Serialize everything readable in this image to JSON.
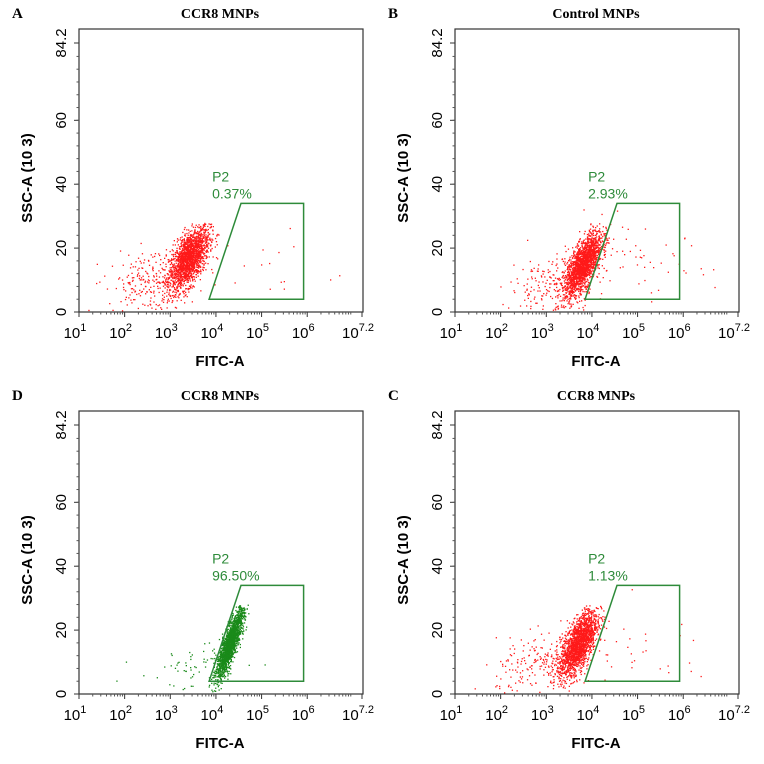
{
  "chart_data": [
    {
      "panel": "A",
      "title": "CCR8 MNPs",
      "type": "scatter",
      "xlabel": "FITC-A",
      "ylabel": "SSC-A",
      "ylabel_unit": "(10 3)",
      "xscale": "log",
      "xlim_exp": [
        1,
        7.2
      ],
      "xticks_exp": [
        "1",
        "2",
        "3",
        "4",
        "5",
        "6",
        "7.2"
      ],
      "ylim": [
        0,
        84.2
      ],
      "yticks": [
        "0",
        "20",
        "40",
        "60",
        "84.2"
      ],
      "gate": {
        "name": "P2",
        "percent": "0.37%",
        "polygon_logx_y": [
          [
            3.85,
            4
          ],
          [
            4.55,
            34
          ],
          [
            5.92,
            34
          ],
          [
            5.92,
            4
          ]
        ]
      },
      "dot_color": "#ff1a1a",
      "clusters": [
        {
          "cx": 3.4,
          "cy": 17,
          "sx": 0.22,
          "sy": 5,
          "n": 1800,
          "corr": 0.6
        },
        {
          "cx": 2.6,
          "cy": 10,
          "sx": 0.5,
          "sy": 5,
          "n": 250,
          "corr": 0.2
        },
        {
          "cx": 5.2,
          "cy": 14,
          "sx": 0.8,
          "sy": 6,
          "n": 15,
          "corr": 0
        }
      ]
    },
    {
      "panel": "B",
      "title": "Control MNPs",
      "type": "scatter",
      "xlabel": "FITC-A",
      "ylabel": "SSC-A",
      "ylabel_unit": "(10 3)",
      "xscale": "log",
      "xlim_exp": [
        1,
        7.2
      ],
      "xticks_exp": [
        "1",
        "2",
        "3",
        "4",
        "5",
        "6",
        "7.2"
      ],
      "ylim": [
        0,
        84.2
      ],
      "yticks": [
        "0",
        "20",
        "40",
        "60",
        "84.2"
      ],
      "gate": {
        "name": "P2",
        "percent": "2.93%",
        "polygon_logx_y": [
          [
            3.85,
            4
          ],
          [
            4.55,
            34
          ],
          [
            5.92,
            34
          ],
          [
            5.92,
            4
          ]
        ]
      },
      "dot_color": "#ff1a1a",
      "clusters": [
        {
          "cx": 3.8,
          "cy": 15,
          "sx": 0.2,
          "sy": 5,
          "n": 1800,
          "corr": 0.7
        },
        {
          "cx": 3.2,
          "cy": 9,
          "sx": 0.5,
          "sy": 5,
          "n": 250,
          "corr": 0.2
        },
        {
          "cx": 5.0,
          "cy": 15,
          "sx": 0.8,
          "sy": 6,
          "n": 50,
          "corr": 0
        }
      ]
    },
    {
      "panel": "D",
      "title": "CCR8 MNPs",
      "type": "scatter",
      "xlabel": "FITC-A",
      "ylabel": "SSC-A",
      "ylabel_unit": "(10 3)",
      "xscale": "log",
      "xlim_exp": [
        1,
        7.2
      ],
      "xticks_exp": [
        "1",
        "2",
        "3",
        "4",
        "5",
        "6",
        "7.2"
      ],
      "ylim": [
        0,
        84.2
      ],
      "yticks": [
        "0",
        "20",
        "40",
        "60",
        "84.2"
      ],
      "gate": {
        "name": "P2",
        "percent": "96.50%",
        "polygon_logx_y": [
          [
            3.85,
            4
          ],
          [
            4.55,
            34
          ],
          [
            5.92,
            34
          ],
          [
            5.92,
            4
          ]
        ]
      },
      "dot_color": "#1a8a1a",
      "clusters": [
        {
          "cx": 4.3,
          "cy": 16,
          "sx": 0.15,
          "sy": 5.5,
          "n": 1800,
          "corr": 0.85
        },
        {
          "cx": 3.5,
          "cy": 8,
          "sx": 0.6,
          "sy": 4,
          "n": 60,
          "corr": 0.2
        }
      ]
    },
    {
      "panel": "C",
      "title": "CCR8 MNPs",
      "type": "scatter",
      "xlabel": "FITC-A",
      "ylabel": "SSC-A",
      "ylabel_unit": "(10 3)",
      "xscale": "log",
      "xlim_exp": [
        1,
        7.2
      ],
      "xticks_exp": [
        "1",
        "2",
        "3",
        "4",
        "5",
        "6",
        "7.2"
      ],
      "ylim": [
        0,
        84.2
      ],
      "yticks": [
        "0",
        "20",
        "40",
        "60",
        "84.2"
      ],
      "gate": {
        "name": "P2",
        "percent": "1.13%",
        "polygon_logx_y": [
          [
            3.85,
            4
          ],
          [
            4.55,
            34
          ],
          [
            5.92,
            34
          ],
          [
            5.92,
            4
          ]
        ]
      },
      "dot_color": "#ff1a1a",
      "clusters": [
        {
          "cx": 3.7,
          "cy": 16,
          "sx": 0.2,
          "sy": 5,
          "n": 1800,
          "corr": 0.65
        },
        {
          "cx": 3.0,
          "cy": 9,
          "sx": 0.55,
          "sy": 5,
          "n": 250,
          "corr": 0.2
        },
        {
          "cx": 5.2,
          "cy": 13,
          "sx": 0.8,
          "sy": 6,
          "n": 25,
          "corr": 0
        }
      ]
    }
  ]
}
